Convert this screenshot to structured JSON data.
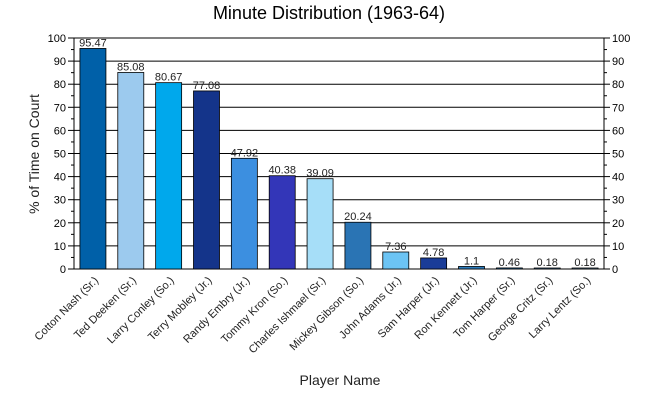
{
  "chart_data": {
    "type": "bar",
    "title": "Minute Distribution (1963-64)",
    "xlabel": "Player Name",
    "ylabel": "% of Time on Court",
    "ylim": [
      0,
      100
    ],
    "yticks": [
      0,
      10,
      20,
      30,
      40,
      50,
      60,
      70,
      80,
      90,
      100
    ],
    "grid": true,
    "categories": [
      "Cotton Nash (Sr.)",
      "Ted Deeken (Sr.)",
      "Larry Conley (So.)",
      "Terry Mobley (Jr.)",
      "Randy Embry (Jr.)",
      "Tommy Kron (So.)",
      "Charles Ishmael (Sr.)",
      "Mickey Gibson (So.)",
      "John Adams (Jr.)",
      "Sam Harper (Jr.)",
      "Ron Kennett (Jr.)",
      "Tom Harper (Sr.)",
      "George Critz (Sr.)",
      "Larry Lentz (So.)"
    ],
    "values": [
      95.47,
      85.08,
      80.67,
      77.08,
      47.92,
      40.38,
      39.09,
      20.24,
      7.36,
      4.78,
      1.1,
      0.46,
      0.18,
      0.18
    ],
    "value_labels": [
      "95.47",
      "85.08",
      "80.67",
      "77.08",
      "47.92",
      "40.38",
      "39.09",
      "20.24",
      "7.36",
      "4.78",
      "1.1",
      "0.46",
      "0.18",
      "0.18"
    ],
    "colors": [
      "#0060a8",
      "#9ccaee",
      "#00a8ec",
      "#14348a",
      "#3c8fe0",
      "#3336b8",
      "#a6def8",
      "#2a74b4",
      "#6cc4f4",
      "#1a3c98",
      "#2c7cbc",
      "#2a8cd4",
      "#5a9ee0",
      "#8ac4ec"
    ]
  }
}
